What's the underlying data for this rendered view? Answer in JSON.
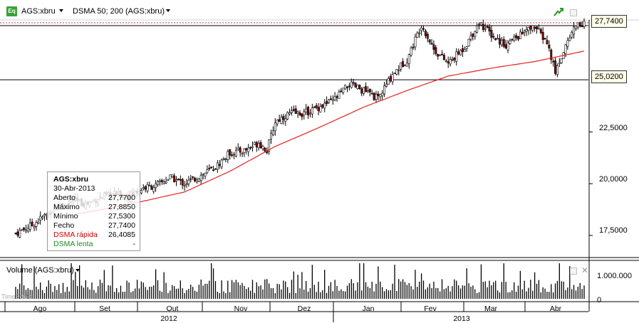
{
  "toolbar": {
    "instrument_icon": "Eq",
    "instrument": "AGS:xbru",
    "study": "DSMA 50; 200 (AGS:xbru)",
    "icons": [
      "trend-icon",
      "restore-icon",
      "close-icon"
    ]
  },
  "price_tags": {
    "last": "27,7400",
    "hidden_partial": "27,?0",
    "level": "25,0200"
  },
  "price_axis": {
    "labels": [
      "22,5000",
      "20,0000",
      "17,5000"
    ]
  },
  "volume_axis": {
    "labels": [
      "1.000.000",
      "0"
    ]
  },
  "volume_panel": {
    "label": "Volume (AGS:xbru)"
  },
  "timescale_label": "TimeScale",
  "legend": {
    "title": "AGS:xbru",
    "date": "30-Abr-2013",
    "rows": [
      {
        "label": "Aberto",
        "value": "27,7700",
        "color": "#000000"
      },
      {
        "label": "Máximo",
        "value": "27,8850",
        "color": "#000000"
      },
      {
        "label": "Mínimo",
        "value": "27,5300",
        "color": "#000000"
      },
      {
        "label": "Fecho",
        "value": "27,7400",
        "color": "#000000"
      },
      {
        "label": "DSMA rápida",
        "value": "26,4085",
        "color": "#cc0000"
      },
      {
        "label": "DSMA lenta",
        "value": "-",
        "color": "#1a8a1a"
      }
    ]
  },
  "time_axis": {
    "months": [
      "Ago",
      "Set",
      "Out",
      "Nov",
      "Dez",
      "Jan",
      "Fev",
      "Mar",
      "Abr"
    ],
    "years": [
      "2012",
      "2013"
    ]
  },
  "colors": {
    "ma_line": "#e82020",
    "up_candle": "#ffffff",
    "down_candle": "#8b0000",
    "grid_line": "#000000",
    "last_price_line": "#cc3355"
  },
  "chart_data": {
    "type": "candlestick",
    "ylim": [
      16.5,
      28.6
    ],
    "horizontal_levels": [
      27.74,
      25.02
    ],
    "close_path": [
      [
        0,
        17.6
      ],
      [
        8,
        18.0
      ],
      [
        20,
        18.9
      ],
      [
        28,
        19.2
      ],
      [
        34,
        19.0
      ],
      [
        40,
        19.3
      ],
      [
        48,
        19.5
      ],
      [
        55,
        19.4
      ],
      [
        62,
        19.8
      ],
      [
        68,
        19.9
      ],
      [
        75,
        20.3
      ],
      [
        82,
        20.0
      ],
      [
        90,
        20.4
      ],
      [
        97,
        20.8
      ],
      [
        104,
        21.5
      ],
      [
        111,
        21.6
      ],
      [
        118,
        22.0
      ],
      [
        122,
        21.6
      ],
      [
        126,
        23.0
      ],
      [
        133,
        23.4
      ],
      [
        140,
        23.4
      ],
      [
        147,
        23.7
      ],
      [
        154,
        24.0
      ],
      [
        162,
        24.8
      ],
      [
        169,
        24.5
      ],
      [
        176,
        24.1
      ],
      [
        183,
        25.3
      ],
      [
        190,
        26.0
      ],
      [
        197,
        27.7
      ],
      [
        203,
        26.5
      ],
      [
        210,
        25.8
      ],
      [
        218,
        26.6
      ],
      [
        225,
        27.8
      ],
      [
        232,
        27.1
      ],
      [
        238,
        26.7
      ],
      [
        245,
        27.2
      ],
      [
        252,
        27.6
      ],
      [
        258,
        26.8
      ],
      [
        262,
        25.4
      ],
      [
        268,
        26.9
      ],
      [
        272,
        27.7
      ],
      [
        276,
        27.74
      ]
    ],
    "dsma_rapida": [
      [
        28,
        18.5
      ],
      [
        55,
        19.0
      ],
      [
        82,
        19.6
      ],
      [
        104,
        20.6
      ],
      [
        126,
        21.8
      ],
      [
        147,
        22.7
      ],
      [
        169,
        23.7
      ],
      [
        190,
        24.5
      ],
      [
        210,
        25.2
      ],
      [
        232,
        25.6
      ],
      [
        252,
        25.9
      ],
      [
        276,
        26.4085
      ]
    ],
    "volume_scale_max": 1500000
  }
}
